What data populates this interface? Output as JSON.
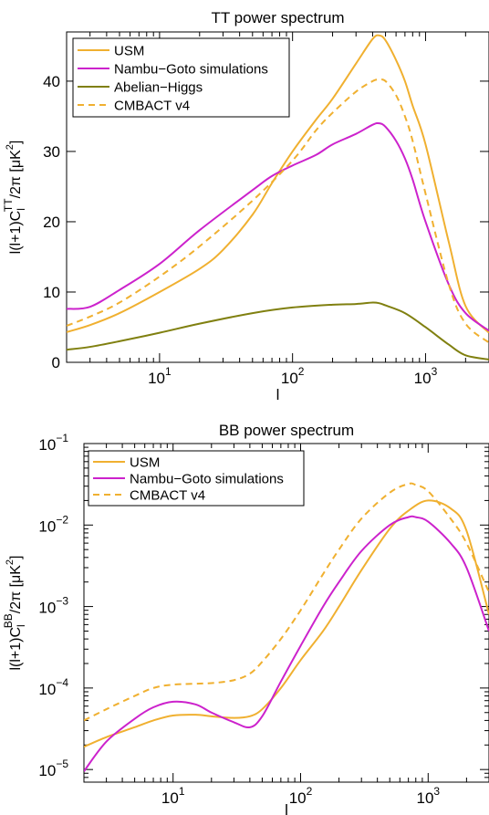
{
  "chart_data": [
    {
      "type": "line",
      "title": "TT power spectrum",
      "xlabel": "l",
      "ylabel_main": "l(l+1)C",
      "ylabel_sub": "l",
      "ylabel_sup": "TT",
      "ylabel_rest": "/2π [μK",
      "ylabel_unit_exp": "2",
      "ylabel_close": "]",
      "x_scale": "log",
      "y_scale": "linear",
      "xlim": [
        2,
        3000
      ],
      "ylim": [
        0,
        47
      ],
      "x_ticks": [
        {
          "value": 10,
          "base": "10",
          "exp": "1"
        },
        {
          "value": 100,
          "base": "10",
          "exp": "2"
        },
        {
          "value": 1000,
          "base": "10",
          "exp": "3"
        }
      ],
      "y_ticks": [
        {
          "value": 0,
          "label": "0"
        },
        {
          "value": 10,
          "label": "10"
        },
        {
          "value": 20,
          "label": "20"
        },
        {
          "value": 30,
          "label": "30"
        },
        {
          "value": 40,
          "label": "40"
        }
      ],
      "legend_position": "top-left",
      "series": [
        {
          "name": "USM",
          "color": "#f0b030",
          "dash": "solid",
          "x": [
            2,
            3,
            5,
            10,
            20,
            30,
            50,
            70,
            100,
            150,
            200,
            300,
            400,
            450,
            500,
            600,
            700,
            800,
            1000,
            1500,
            2000,
            3000
          ],
          "y": [
            4.3,
            5.3,
            7.0,
            10.0,
            13.3,
            16.0,
            21.0,
            25.5,
            30.0,
            34.5,
            37.5,
            42.5,
            46.0,
            46.5,
            45.8,
            43.0,
            40.0,
            36.5,
            31.0,
            17.0,
            8.0,
            4.2
          ]
        },
        {
          "name": "Nambu−Goto simulations",
          "color": "#cc22cc",
          "dash": "solid",
          "x": [
            2,
            3,
            5,
            10,
            20,
            50,
            70,
            100,
            150,
            200,
            300,
            400,
            450,
            500,
            600,
            700,
            800,
            1000,
            1500,
            2000,
            3000
          ],
          "y": [
            7.6,
            7.9,
            10.3,
            14.0,
            18.8,
            24.5,
            26.5,
            28.0,
            29.5,
            31.0,
            32.5,
            33.8,
            34.0,
            33.5,
            31.5,
            29.0,
            26.0,
            20.0,
            11.0,
            7.0,
            4.5
          ]
        },
        {
          "name": "Abelian−Higgs",
          "color": "#808010",
          "dash": "solid",
          "x": [
            2,
            3,
            5,
            10,
            20,
            50,
            100,
            200,
            300,
            400,
            450,
            500,
            700,
            1000,
            1500,
            2000,
            3000
          ],
          "y": [
            1.8,
            2.2,
            3.0,
            4.2,
            5.5,
            7.0,
            7.8,
            8.2,
            8.3,
            8.5,
            8.4,
            8.1,
            7.0,
            5.0,
            2.5,
            1.0,
            0.4
          ]
        },
        {
          "name": "CMBACT v4",
          "color": "#f0b030",
          "dash": "dashed",
          "x": [
            2,
            3,
            5,
            10,
            20,
            50,
            100,
            150,
            200,
            300,
            400,
            450,
            500,
            600,
            700,
            800,
            1000,
            1500,
            2000,
            3000
          ],
          "y": [
            5.2,
            6.5,
            8.5,
            12.2,
            16.5,
            23.0,
            28.7,
            33.0,
            35.5,
            38.5,
            40.0,
            40.2,
            40.0,
            38.0,
            35.0,
            31.5,
            24.0,
            11.0,
            5.5,
            2.8
          ]
        }
      ]
    },
    {
      "type": "line",
      "title": "BB power spectrum",
      "xlabel": "l",
      "ylabel_main": "l(l+1)C",
      "ylabel_sub": "l",
      "ylabel_sup": "BB",
      "ylabel_rest": "/2π [μK",
      "ylabel_unit_exp": "2",
      "ylabel_close": "]",
      "x_scale": "log",
      "y_scale": "log",
      "xlim": [
        2,
        3000
      ],
      "ylim": [
        7e-06,
        0.1
      ],
      "x_ticks": [
        {
          "value": 10,
          "base": "10",
          "exp": "1"
        },
        {
          "value": 100,
          "base": "10",
          "exp": "2"
        },
        {
          "value": 1000,
          "base": "10",
          "exp": "3"
        }
      ],
      "y_ticks": [
        {
          "value": 1e-05,
          "base": "10",
          "exp": "−5"
        },
        {
          "value": 0.0001,
          "base": "10",
          "exp": "−4"
        },
        {
          "value": 0.001,
          "base": "10",
          "exp": "−3"
        },
        {
          "value": 0.01,
          "base": "10",
          "exp": "−2"
        },
        {
          "value": 0.1,
          "base": "10",
          "exp": "−1"
        }
      ],
      "legend_position": "top-left",
      "series": [
        {
          "name": "USM",
          "color": "#f0b030",
          "dash": "solid",
          "x": [
            2,
            3,
            5,
            7,
            10,
            15,
            20,
            30,
            40,
            50,
            70,
            100,
            150,
            200,
            300,
            500,
            700,
            1000,
            1500,
            2000,
            3000
          ],
          "y": [
            1.9e-05,
            2.5e-05,
            3.3e-05,
            4e-05,
            4.6e-05,
            4.7e-05,
            4.5e-05,
            4.3e-05,
            4.5e-05,
            5.5e-05,
            0.0001,
            0.00022,
            0.0005,
            0.001,
            0.0028,
            0.009,
            0.015,
            0.02,
            0.016,
            0.0085,
            0.0008
          ]
        },
        {
          "name": "Nambu−Goto simulations",
          "color": "#cc22cc",
          "dash": "solid",
          "x": [
            2,
            3,
            5,
            7,
            10,
            15,
            20,
            30,
            40,
            50,
            70,
            100,
            150,
            200,
            300,
            500,
            700,
            800,
            1000,
            1500,
            2000,
            3000
          ],
          "y": [
            9.5e-06,
            2.2e-05,
            4.2e-05,
            5.8e-05,
            6.8e-05,
            6.3e-05,
            5e-05,
            3.8e-05,
            3.3e-05,
            4.5e-05,
            0.00012,
            0.00033,
            0.001,
            0.002,
            0.0048,
            0.01,
            0.0125,
            0.0125,
            0.011,
            0.006,
            0.003,
            0.0005
          ]
        },
        {
          "name": "CMBACT v4",
          "color": "#f0b030",
          "dash": "dashed",
          "x": [
            2,
            3,
            5,
            7,
            10,
            20,
            30,
            40,
            50,
            70,
            100,
            150,
            200,
            300,
            500,
            700,
            800,
            1000,
            1500,
            2000,
            3000
          ],
          "y": [
            4e-05,
            5.5e-05,
            8e-05,
            0.0001,
            0.00011,
            0.000115,
            0.000125,
            0.00015,
            0.00021,
            0.0004,
            0.0009,
            0.0025,
            0.005,
            0.012,
            0.025,
            0.032,
            0.031,
            0.026,
            0.012,
            0.006,
            0.0015
          ]
        }
      ]
    }
  ]
}
